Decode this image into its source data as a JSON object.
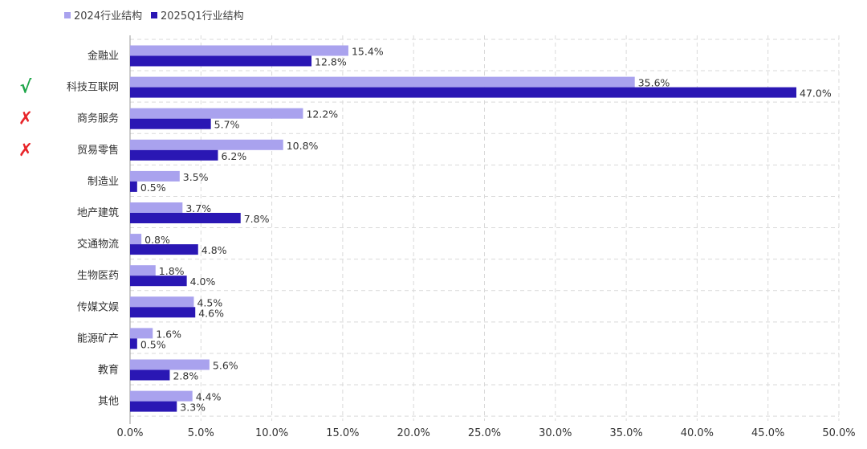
{
  "chart_data": {
    "type": "bar",
    "orientation": "horizontal",
    "categories": [
      "金融业",
      "科技互联网",
      "商务服务",
      "贸易零售",
      "制造业",
      "地产建筑",
      "交通物流",
      "生物医药",
      "传媒文娱",
      "能源矿产",
      "教育",
      "其他"
    ],
    "series": [
      {
        "name": "2024行业结构",
        "values": [
          15.4,
          35.6,
          12.2,
          10.8,
          3.5,
          3.7,
          0.8,
          1.8,
          4.5,
          1.6,
          5.6,
          4.4
        ],
        "labels": [
          "15.4%",
          "35.6%",
          "12.2%",
          "10.8%",
          "3.5%",
          "3.7%",
          "0.8%",
          "1.8%",
          "4.5%",
          "1.6%",
          "5.6%",
          "4.4%"
        ]
      },
      {
        "name": "2025Q1行业结构",
        "values": [
          12.8,
          47.0,
          5.7,
          6.2,
          0.5,
          7.8,
          4.8,
          4.0,
          4.6,
          0.5,
          2.8,
          3.3
        ],
        "labels": [
          "12.8%",
          "47.0%",
          "5.7%",
          "6.2%",
          "0.5%",
          "7.8%",
          "4.8%",
          "4.0%",
          "4.6%",
          "0.5%",
          "2.8%",
          "3.3%"
        ]
      }
    ],
    "xlim": [
      0,
      50
    ],
    "x_ticks": [
      "0.0%",
      "5.0%",
      "10.0%",
      "15.0%",
      "20.0%",
      "25.0%",
      "30.0%",
      "35.0%",
      "40.0%",
      "45.0%",
      "50.0%"
    ],
    "grid": true,
    "legend_position": "top-left",
    "colors": {
      "series_2024": "#a9a2ee",
      "series_2025": "#2a17b4",
      "check": "#1fa64a",
      "cross": "#e8252a"
    },
    "annotations": [
      {
        "category": "科技互联网",
        "mark": "√"
      },
      {
        "category": "商务服务",
        "mark": "✗"
      },
      {
        "category": "贸易零售",
        "mark": "✗"
      }
    ]
  }
}
